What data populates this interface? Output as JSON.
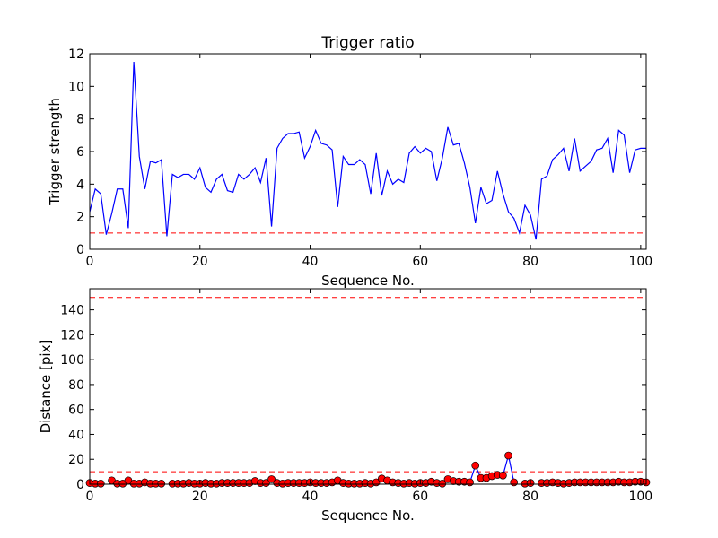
{
  "chart_data": [
    {
      "type": "line",
      "title": "Trigger ratio",
      "xlabel": "Sequence No.",
      "ylabel": "Trigger strength",
      "xlim": [
        0,
        101
      ],
      "ylim": [
        0,
        12
      ],
      "xticks": [
        0,
        20,
        40,
        60,
        80,
        100
      ],
      "yticks": [
        0,
        2,
        4,
        6,
        8,
        10,
        12
      ],
      "grid": false,
      "series": [
        {
          "color": "#0000ff",
          "x": [
            0,
            1,
            2,
            3,
            4,
            5,
            6,
            7,
            8,
            9,
            10,
            11,
            12,
            13,
            14,
            15,
            16,
            17,
            18,
            19,
            20,
            21,
            22,
            23,
            24,
            25,
            26,
            27,
            28,
            29,
            30,
            31,
            32,
            33,
            34,
            35,
            36,
            37,
            38,
            39,
            40,
            41,
            42,
            43,
            44,
            45,
            46,
            47,
            48,
            49,
            50,
            51,
            52,
            53,
            54,
            55,
            56,
            57,
            58,
            59,
            60,
            61,
            62,
            63,
            64,
            65,
            66,
            67,
            68,
            69,
            70,
            71,
            72,
            73,
            74,
            75,
            76,
            77,
            78,
            79,
            80,
            81,
            82,
            83,
            84,
            85,
            86,
            87,
            88,
            89,
            90,
            91,
            92,
            93,
            94,
            95,
            96,
            97,
            98,
            99,
            100,
            101
          ],
          "y": [
            2.3,
            3.7,
            3.4,
            0.9,
            2.2,
            3.7,
            3.7,
            1.3,
            11.5,
            5.7,
            3.7,
            5.4,
            5.3,
            5.5,
            0.8,
            4.6,
            4.4,
            4.6,
            4.6,
            4.3,
            5.0,
            3.8,
            3.5,
            4.3,
            4.6,
            3.6,
            3.5,
            4.6,
            4.3,
            4.6,
            5.0,
            4.1,
            5.6,
            1.4,
            6.2,
            6.8,
            7.1,
            7.1,
            7.2,
            5.6,
            6.3,
            7.3,
            6.5,
            6.4,
            6.1,
            2.6,
            5.7,
            5.2,
            5.2,
            5.5,
            5.2,
            3.4,
            5.9,
            3.3,
            4.8,
            4.0,
            4.3,
            4.1,
            5.9,
            6.3,
            5.9,
            6.2,
            6.0,
            4.2,
            5.6,
            7.5,
            6.4,
            6.5,
            5.3,
            3.8,
            1.6,
            3.8,
            2.8,
            3.0,
            4.8,
            3.4,
            2.3,
            1.9,
            1.0,
            2.7,
            2.1,
            0.6,
            4.3,
            4.5,
            5.5,
            5.8,
            6.2,
            4.8,
            6.8,
            4.8,
            5.1,
            5.4,
            6.1,
            6.2,
            6.8,
            4.7,
            7.3,
            7.0,
            4.7,
            6.1,
            6.2,
            6.2
          ]
        }
      ],
      "threshold": {
        "value": 1.0,
        "color": "#ff0000",
        "style": "dashed"
      }
    },
    {
      "type": "line",
      "title": "",
      "xlabel": "Sequence No.",
      "ylabel": "Distance [pix]",
      "xlim": [
        0,
        101
      ],
      "ylim": [
        0,
        157
      ],
      "xticks": [
        0,
        20,
        40,
        60,
        80,
        100
      ],
      "yticks": [
        0,
        20,
        40,
        60,
        80,
        100,
        120,
        140
      ],
      "grid": false,
      "series": [
        {
          "line_color": "#0000ff",
          "marker_color": "#ff0000",
          "marker": "circle",
          "x": [
            0,
            1,
            2,
            3,
            4,
            5,
            6,
            7,
            8,
            9,
            10,
            11,
            12,
            13,
            14,
            15,
            16,
            17,
            18,
            19,
            20,
            21,
            22,
            23,
            24,
            25,
            26,
            27,
            28,
            29,
            30,
            31,
            32,
            33,
            34,
            35,
            36,
            37,
            38,
            39,
            40,
            41,
            42,
            43,
            44,
            45,
            46,
            47,
            48,
            49,
            50,
            51,
            52,
            53,
            54,
            55,
            56,
            57,
            58,
            59,
            60,
            61,
            62,
            63,
            64,
            65,
            66,
            67,
            68,
            69,
            70,
            71,
            72,
            73,
            74,
            75,
            76,
            77,
            78,
            79,
            80,
            81,
            82,
            83,
            84,
            85,
            86,
            87,
            88,
            89,
            90,
            91,
            92,
            93,
            94,
            95,
            96,
            97,
            98,
            99,
            100,
            101
          ],
          "y": [
            1,
            0.5,
            0.5,
            null,
            3,
            0.5,
            0.5,
            3,
            0.5,
            0.5,
            1.5,
            0.5,
            0.5,
            0.5,
            null,
            0.5,
            0.5,
            0.5,
            1,
            0.5,
            0.5,
            1,
            0.5,
            0.5,
            1,
            1,
            1,
            1,
            1,
            1,
            2.5,
            1,
            1,
            4,
            1,
            0.5,
            1,
            1,
            1,
            1,
            1.5,
            1,
            1,
            1,
            1.5,
            3,
            1,
            0.5,
            0.5,
            0.5,
            1,
            0.5,
            1.5,
            4.5,
            3,
            1.5,
            1,
            0.5,
            1,
            0.5,
            1,
            1,
            2,
            1,
            0.5,
            4,
            2.5,
            2,
            2,
            1.5,
            15,
            5,
            5,
            6.5,
            7.5,
            7,
            23,
            1.5,
            null,
            0.5,
            1,
            null,
            1,
            1,
            1.5,
            1,
            0.5,
            1,
            1.5,
            1.5,
            1.5,
            1.5,
            1.5,
            1.5,
            1.5,
            1.5,
            2,
            1.5,
            1.5,
            2,
            2,
            1.5
          ]
        }
      ],
      "thresholds": [
        {
          "value": 10,
          "color": "#ff0000",
          "style": "dashed"
        },
        {
          "value": 150,
          "color": "#ff0000",
          "style": "dashed"
        }
      ]
    }
  ]
}
